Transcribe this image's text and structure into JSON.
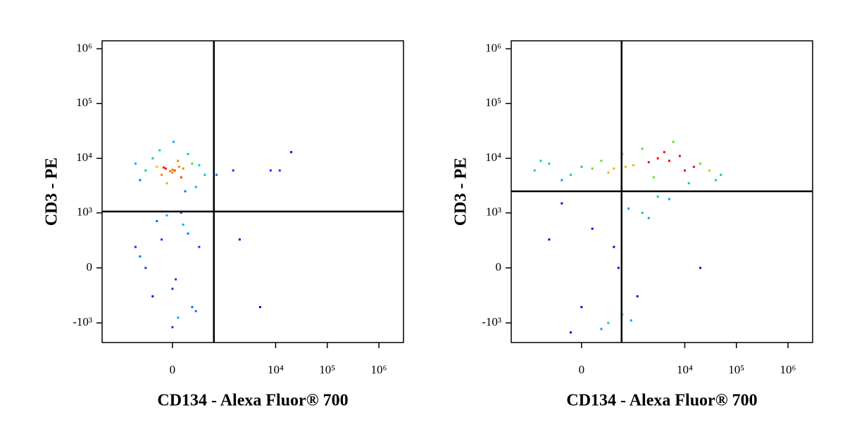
{
  "chart_data": [
    {
      "type": "scatter",
      "xlabel": "CD134 - Alexa Fluor® 700",
      "ylabel": "CD3 - PE",
      "xlim": [
        -2300,
        3000000
      ],
      "ylim": [
        -2300,
        1400000
      ],
      "xticks": [
        0,
        {
          "value": 10000,
          "label": "10⁴"
        },
        {
          "value": 100000,
          "label": "10⁵"
        },
        {
          "value": 1000000,
          "label": "10⁶"
        }
      ],
      "yticks": [
        {
          "value": -1000,
          "label": "-10³"
        },
        0,
        {
          "value": 1000,
          "label": "10³"
        },
        {
          "value": 10000,
          "label": "10⁴"
        },
        {
          "value": 100000,
          "label": "10⁵"
        },
        {
          "value": 1000000,
          "label": "10⁶"
        }
      ],
      "gate_x": 620,
      "gate_y": 1060,
      "x": [
        -300,
        -150,
        0,
        100,
        200,
        -400,
        50,
        -100,
        300,
        -50,
        150,
        0,
        -200,
        80,
        -80,
        250,
        400,
        -500,
        20,
        -20,
        120,
        -120,
        60,
        -60,
        10,
        700,
        1500,
        12000,
        20000,
        8000,
        -300,
        -100,
        0,
        100,
        200,
        -400,
        50,
        -50,
        300,
        -200,
        150,
        0,
        80,
        -150,
        250,
        -500,
        30,
        2000,
        5000
      ],
      "y": [
        6000,
        7000,
        5500,
        6500,
        8000,
        4000,
        9000,
        5000,
        7500,
        3500,
        12000,
        6200,
        10000,
        4500,
        6800,
        3000,
        5000,
        8000,
        6000,
        5800,
        2500,
        14000,
        7000,
        6500,
        20000,
        5000,
        6000,
        6000,
        13000,
        6000,
        0,
        300,
        -200,
        600,
        -500,
        100,
        -800,
        900,
        200,
        -300,
        400,
        -1200,
        1000,
        700,
        -600,
        200,
        -100,
        300,
        -500
      ]
    },
    {
      "type": "scatter",
      "xlabel": "CD134 - Alexa Fluor® 700",
      "ylabel": "CD3 - PE",
      "xlim": [
        -2300,
        3000000
      ],
      "ylim": [
        -2300,
        1400000
      ],
      "xticks": [
        0,
        {
          "value": 10000,
          "label": "10⁴"
        },
        {
          "value": 100000,
          "label": "10⁵"
        },
        {
          "value": 1000000,
          "label": "10⁶"
        }
      ],
      "yticks": [
        {
          "value": -1000,
          "label": "-10³"
        },
        0,
        {
          "value": 1000,
          "label": "10³"
        },
        {
          "value": 10000,
          "label": "10⁴"
        },
        {
          "value": 100000,
          "label": "10⁵"
        },
        {
          "value": 1000000,
          "label": "10⁶"
        }
      ],
      "gate_x": 580,
      "gate_y": 2500,
      "x": [
        -800,
        -400,
        -100,
        0,
        200,
        400,
        600,
        1000,
        2000,
        3000,
        5000,
        8000,
        15000,
        30000,
        50000,
        -200,
        300,
        1500,
        4000,
        10000,
        20000,
        -600,
        100,
        700,
        2500,
        6000,
        12000,
        40000,
        -200,
        0,
        100,
        300,
        500,
        800,
        1200,
        2000,
        3000,
        -100,
        400,
        600,
        1500,
        5000,
        200,
        20000,
        -400,
        900
      ],
      "y": [
        6000,
        8000,
        5000,
        7000,
        9000,
        6500,
        12000,
        7500,
        8500,
        10000,
        9000,
        11000,
        7000,
        6000,
        5000,
        4000,
        5500,
        15000,
        13000,
        6000,
        8000,
        9000,
        6500,
        7000,
        4500,
        20000,
        3500,
        4000,
        1500,
        -500,
        500,
        -1000,
        0,
        1200,
        -300,
        800,
        2000,
        -1500,
        200,
        -700,
        1000,
        1800,
        -1300,
        0,
        300,
        -900
      ]
    }
  ]
}
